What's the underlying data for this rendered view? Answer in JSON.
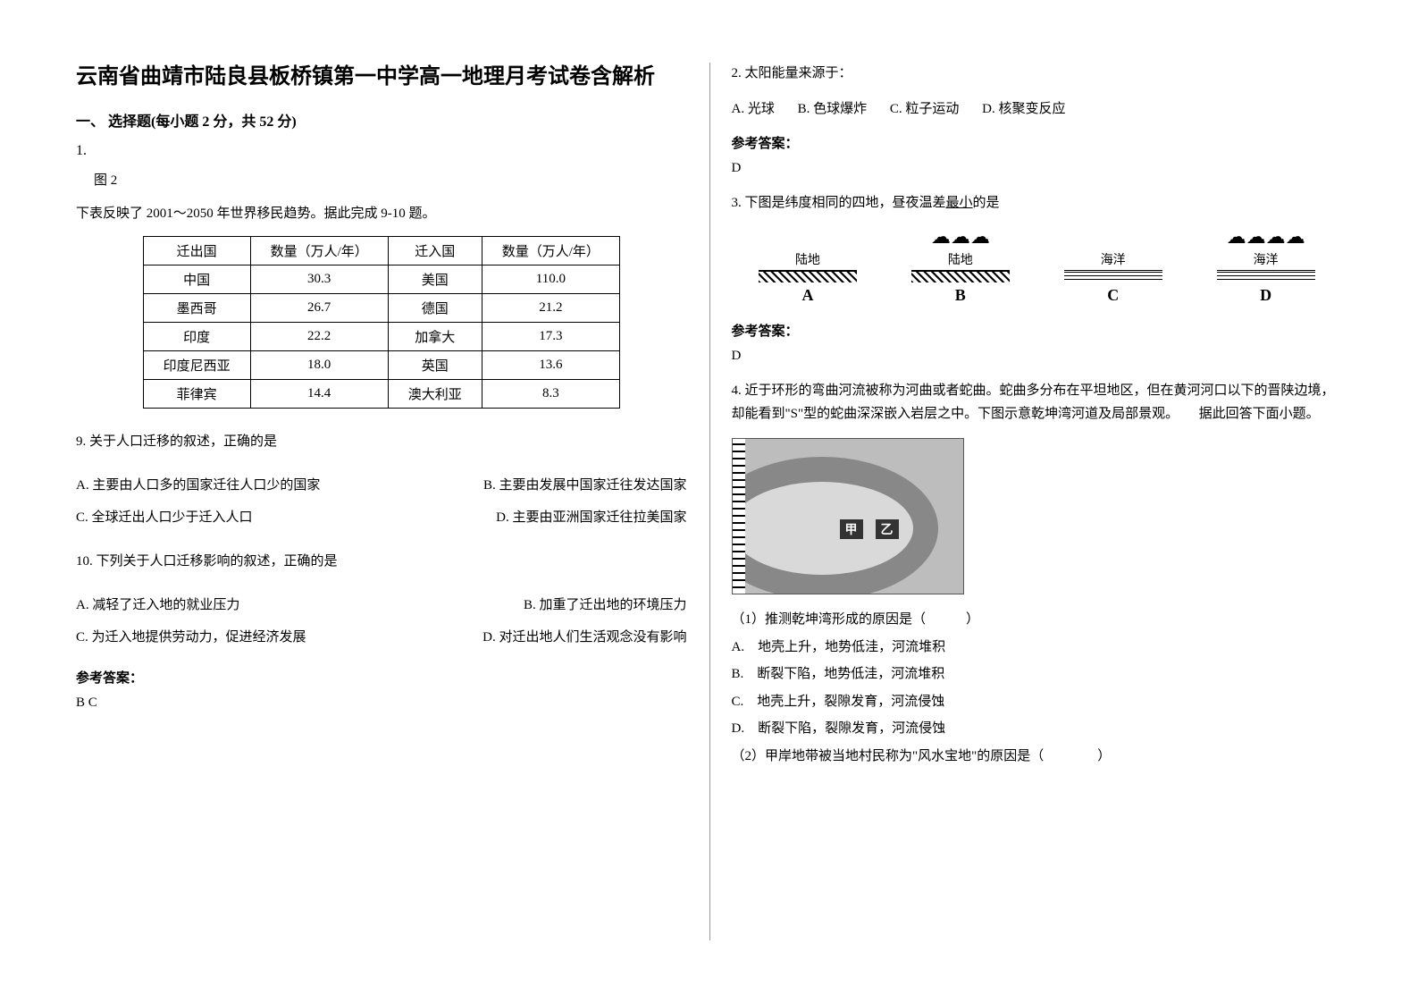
{
  "title": "云南省曲靖市陆良县板桥镇第一中学高一地理月考试卷含解析",
  "section_header": "一、 选择题(每小题 2 分，共 52 分)",
  "q1": {
    "num": "1.",
    "fig": "图 2",
    "stem": "下表反映了 2001～2050 年世界移民趋势。据此完成 9-10 题。",
    "table": {
      "headers": [
        "迁出国",
        "数量（万人/年）",
        "迁入国",
        "数量（万人/年）"
      ],
      "rows": [
        [
          "中国",
          "30.3",
          "美国",
          "110.0"
        ],
        [
          "墨西哥",
          "26.7",
          "德国",
          "21.2"
        ],
        [
          "印度",
          "22.2",
          "加拿大",
          "17.3"
        ],
        [
          "印度尼西亚",
          "18.0",
          "英国",
          "13.6"
        ],
        [
          "菲律宾",
          "14.4",
          "澳大利亚",
          "8.3"
        ]
      ]
    },
    "q9": "9. 关于人口迁移的叙述，正确的是",
    "q9opts": {
      "A": "A. 主要由人口多的国家迁往人口少的国家",
      "B": "B. 主要由发展中国家迁往发达国家",
      "C": "C. 全球迁出人口少于迁入人口",
      "D": "D. 主要由亚洲国家迁往拉美国家"
    },
    "q10": "10. 下列关于人口迁移影响的叙述，正确的是",
    "q10opts": {
      "A": "A. 减轻了迁入地的就业压力",
      "B": "B. 加重了迁出地的环境压力",
      "C": "C. 为迁入地提供劳动力，促进经济发展",
      "D": "D. 对迁出地人们生活观念没有影响"
    },
    "ans_label": "参考答案：",
    "ans": "B  C"
  },
  "q2": {
    "stem": "2. 太阳能量来源于：",
    "opts": {
      "A": "A. 光球",
      "B": "B. 色球爆炸",
      "C": "C. 粒子运动",
      "D": "D. 核聚变反应"
    },
    "ans_label": "参考答案：",
    "ans": "D"
  },
  "q3": {
    "stem_pre": "3. 下图是纬度相同的四地，昼夜温差",
    "stem_ul": "最小",
    "stem_post": "的是",
    "cells": [
      {
        "cloud": "",
        "surface": "陆地",
        "type": "land",
        "label": "A"
      },
      {
        "cloud": "☁☁☁",
        "surface": "陆地",
        "type": "land",
        "label": "B"
      },
      {
        "cloud": "",
        "surface": "海洋",
        "type": "sea",
        "label": "C"
      },
      {
        "cloud": "☁☁☁☁",
        "surface": "海洋",
        "type": "sea",
        "label": "D"
      }
    ],
    "ans_label": "参考答案：",
    "ans": "D"
  },
  "q4": {
    "stem": "4. 近于环形的弯曲河流被称为河曲或者蛇曲。蛇曲多分布在平坦地区，但在黄河河口以下的晋陕边境，却能看到\"S\"型的蛇曲深深嵌入岩层之中。下图示意乾坤湾河道及局部景观。　　据此回答下面小题。",
    "marks": {
      "jia": "甲",
      "yi": "乙"
    },
    "sub1": "（1）推测乾坤湾形成的原因是（　　　）",
    "sub1opts": {
      "A": "A.　地壳上升，地势低洼，河流堆积",
      "B": "B.　断裂下陷，地势低洼，河流堆积",
      "C": "C.　地壳上升，裂隙发育，河流侵蚀",
      "D": "D.　断裂下陷，裂隙发育，河流侵蚀"
    },
    "sub2": "（2）甲岸地带被当地村民称为\"风水宝地\"的原因是（　　　　）"
  }
}
